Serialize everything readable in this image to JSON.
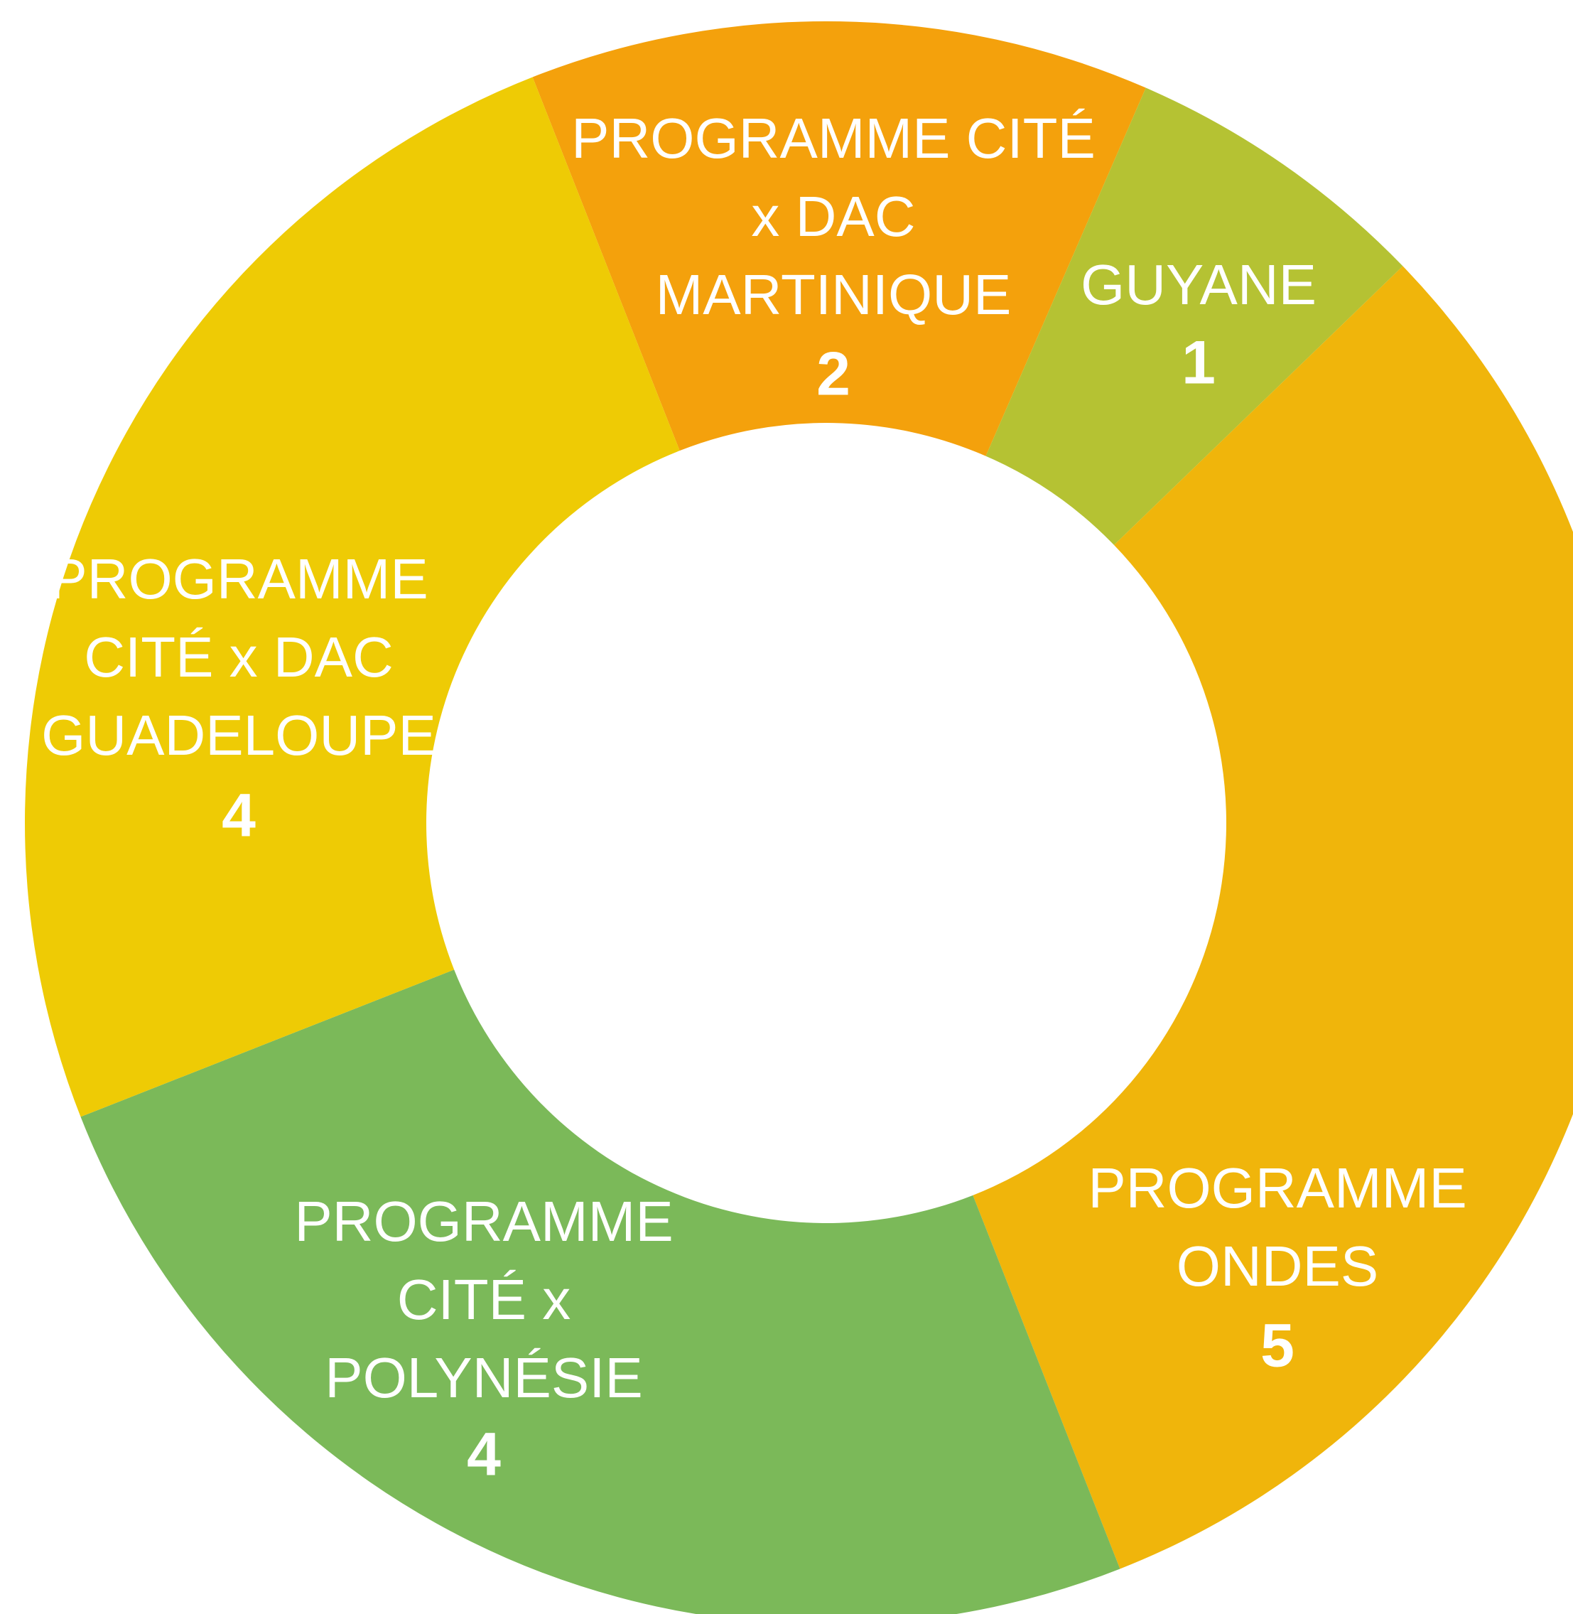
{
  "chart_data": {
    "type": "donut",
    "categories": [
      "PROGRAMME CITÉ\nx DAC\nMARTINIQUE",
      "GUYANE",
      "PROGRAMME\nONDES",
      "PROGRAMME\nCITÉ x\nPOLYNÉSIE",
      "PROGRAMME\nCITÉ x DAC\nGUADELOUPE"
    ],
    "values": [
      2,
      1,
      5,
      4,
      4
    ],
    "colors": [
      "#f4a10c",
      "#b5c233",
      "#f0b50b",
      "#7bb959",
      "#eecb05"
    ]
  }
}
